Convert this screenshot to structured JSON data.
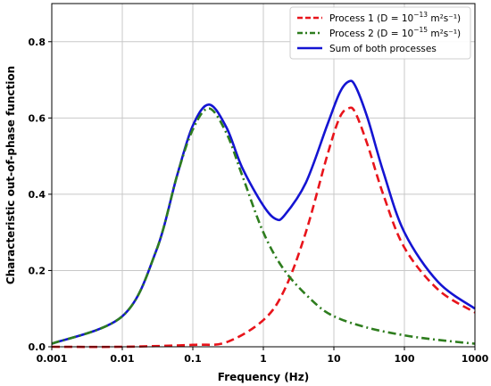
{
  "chart_data": {
    "type": "line",
    "xlabel": "Frequency (Hz)",
    "ylabel": "Characteristic out-of-phase function",
    "xscale": "log",
    "xlim": [
      0.001,
      1000
    ],
    "ylim": [
      0,
      0.9
    ],
    "x_ticks": [
      0.001,
      0.01,
      0.1,
      1,
      10,
      100,
      1000
    ],
    "x_tick_labels": [
      "0.001",
      "0.01",
      "0.1",
      "1",
      "10",
      "100",
      "1000"
    ],
    "y_ticks": [
      0,
      0.2,
      0.4,
      0.6,
      0.8
    ],
    "y_tick_labels": [
      "0.0",
      "0.2",
      "0.4",
      "0.6",
      "0.8"
    ],
    "grid": true,
    "legend_position": "top-right",
    "series": [
      {
        "name_prefix": "Process 1 (D = 10",
        "name_exp": "−13",
        "name_suffix": " m²s⁻¹)",
        "color": "#e8141b",
        "style": "dashed",
        "peak_frequency": 16,
        "peak_value": 0.625,
        "x": [
          0.001,
          0.01,
          0.1,
          0.3,
          1,
          2,
          4,
          8,
          12,
          16,
          20,
          30,
          50,
          100,
          300,
          1000
        ],
        "y": [
          0.0,
          0.0,
          0.005,
          0.012,
          0.07,
          0.15,
          0.3,
          0.5,
          0.6,
          0.625,
          0.615,
          0.53,
          0.4,
          0.26,
          0.15,
          0.09
        ]
      },
      {
        "name_prefix": "Process 2 (D = 10",
        "name_exp": "−15",
        "name_suffix": " m²s⁻¹)",
        "color": "#2e7d1e",
        "style": "dashdot",
        "peak_frequency": 0.17,
        "peak_value": 0.625,
        "x": [
          0.001,
          0.01,
          0.03,
          0.06,
          0.1,
          0.17,
          0.3,
          0.5,
          1,
          2,
          5,
          10,
          30,
          100,
          300,
          1000
        ],
        "y": [
          0.008,
          0.08,
          0.25,
          0.45,
          0.57,
          0.625,
          0.56,
          0.45,
          0.3,
          0.2,
          0.12,
          0.08,
          0.05,
          0.03,
          0.018,
          0.008
        ]
      },
      {
        "name": "Sum of both processes",
        "color": "#1414d2",
        "style": "solid",
        "x": [
          0.001,
          0.01,
          0.03,
          0.06,
          0.1,
          0.17,
          0.3,
          0.5,
          1,
          1.5,
          2,
          4,
          8,
          12,
          16,
          20,
          30,
          50,
          100,
          300,
          1000
        ],
        "y": [
          0.008,
          0.08,
          0.25,
          0.45,
          0.58,
          0.635,
          0.575,
          0.47,
          0.37,
          0.335,
          0.345,
          0.43,
          0.58,
          0.665,
          0.695,
          0.685,
          0.6,
          0.46,
          0.3,
          0.17,
          0.1
        ]
      }
    ]
  }
}
